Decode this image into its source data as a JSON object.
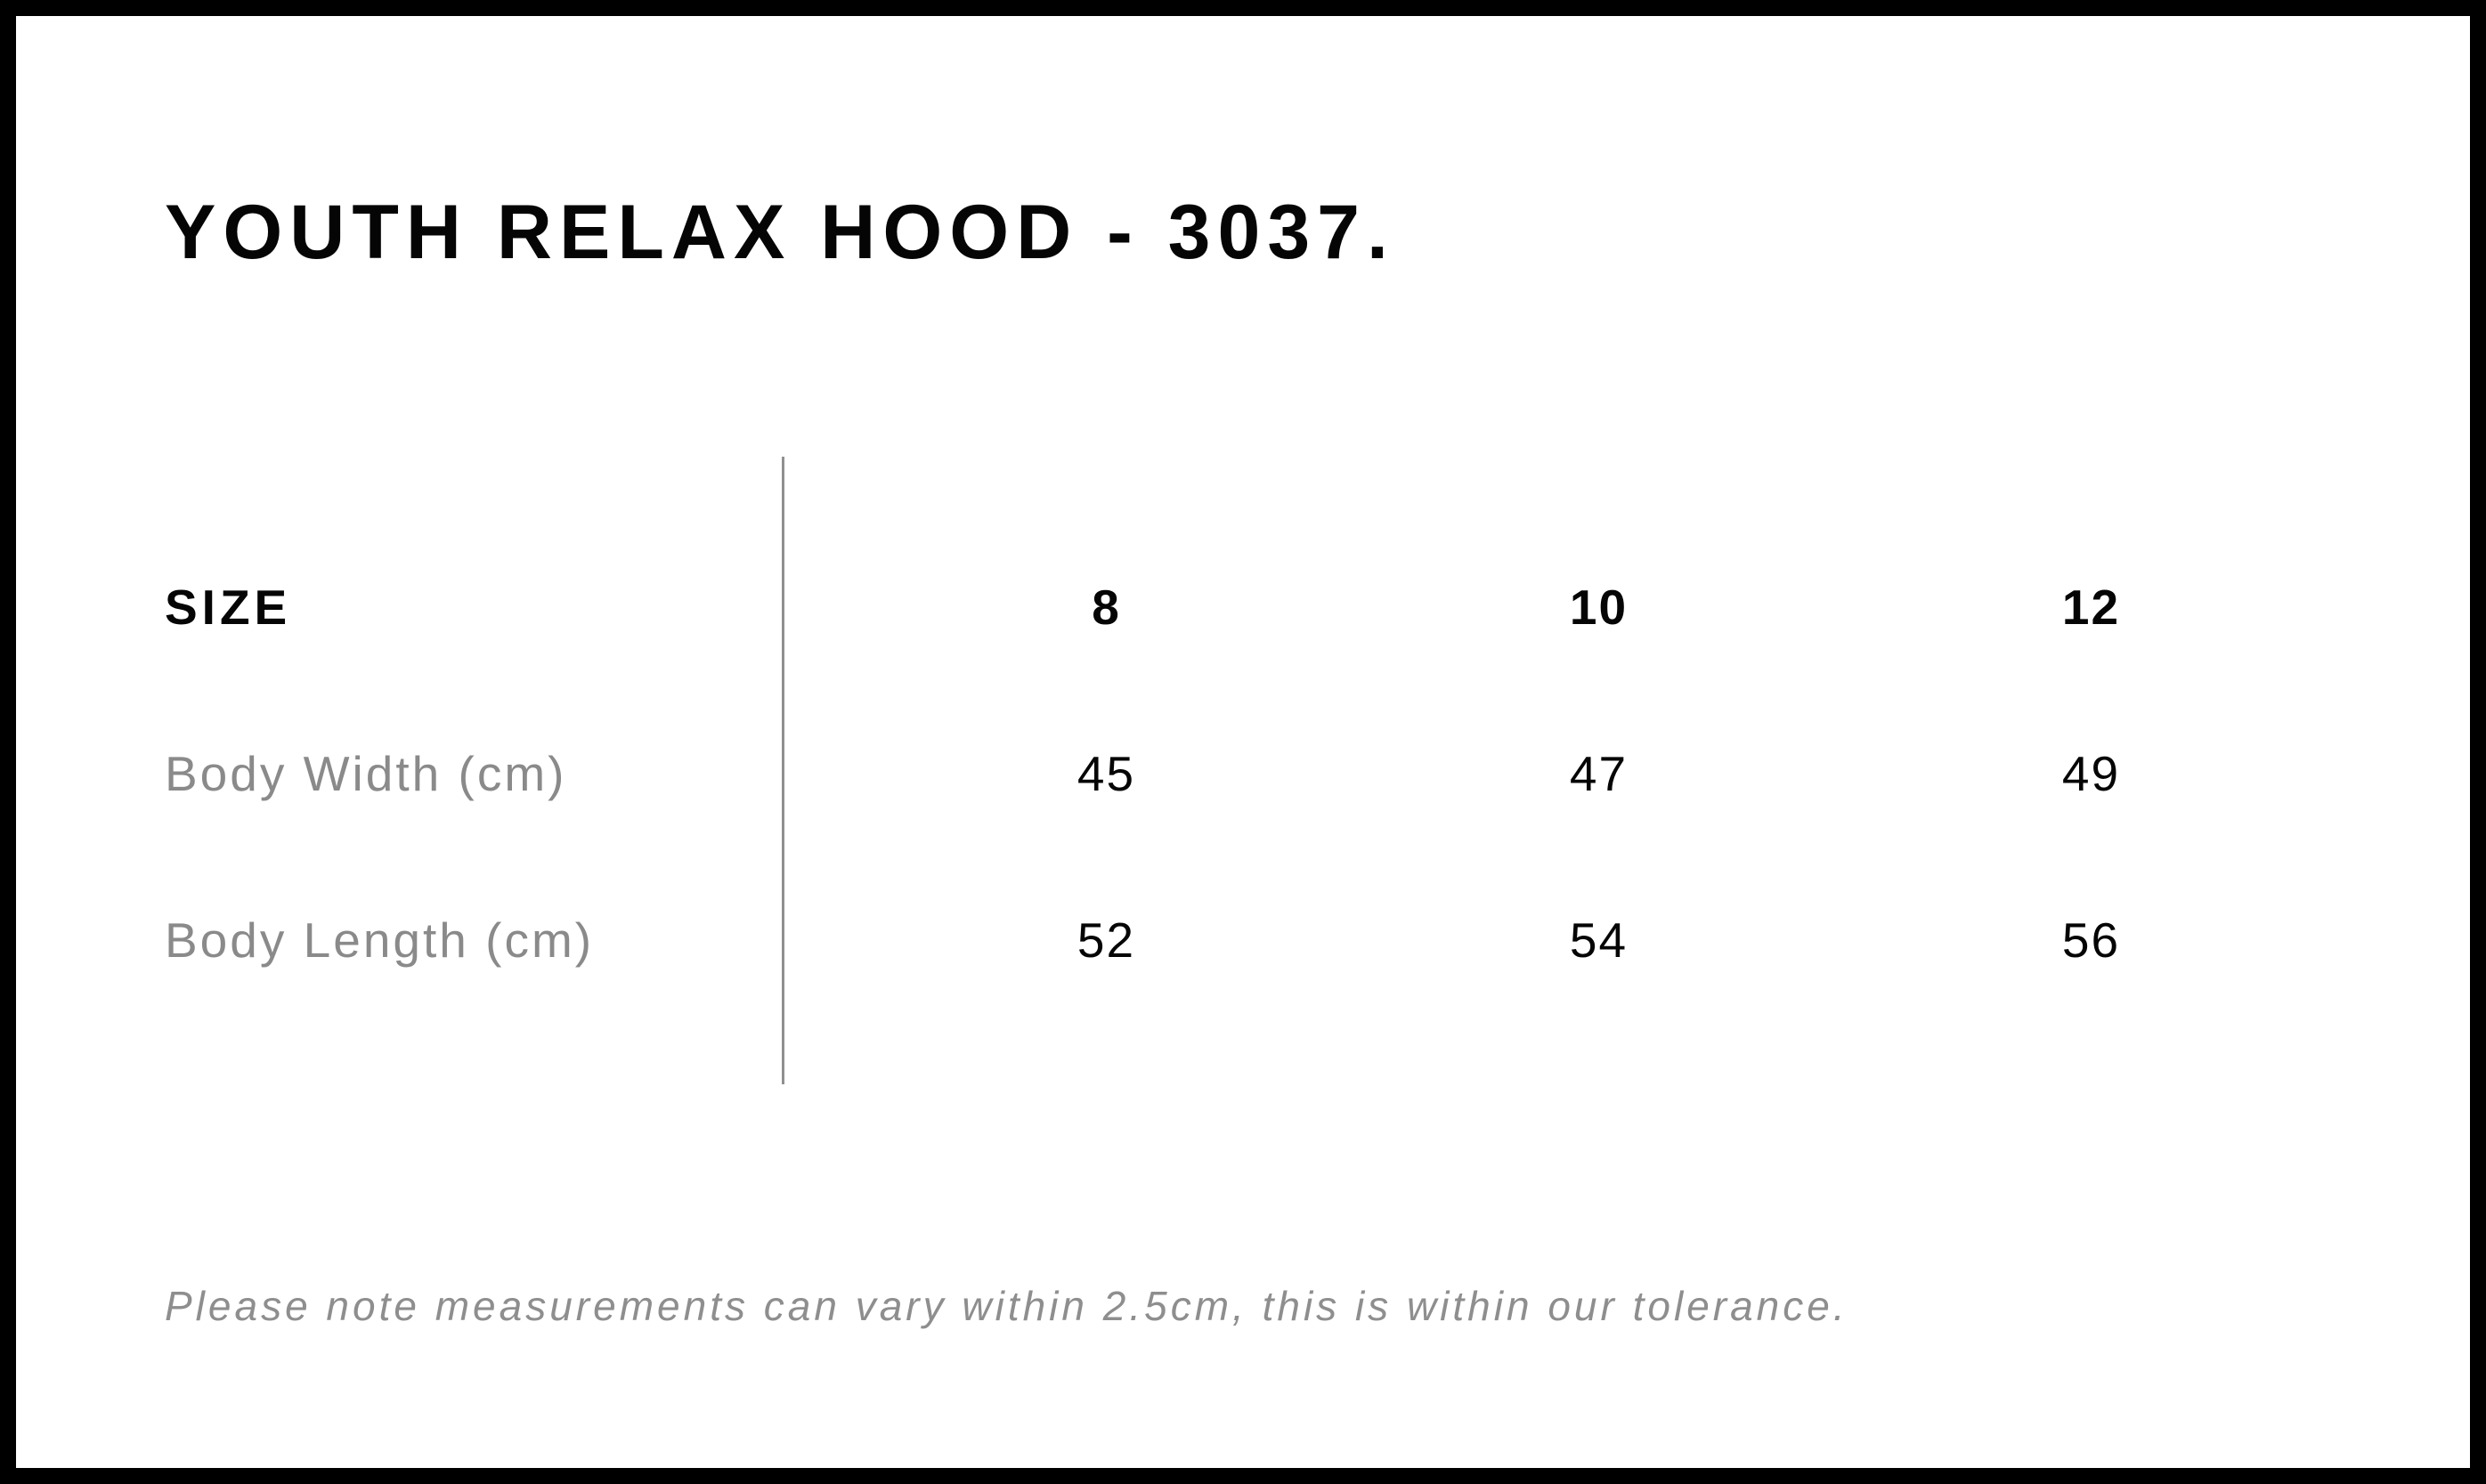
{
  "page": {
    "title": "YOUTH RELAX HOOD - 3037.",
    "note": "Please note measurements can vary within 2.5cm, this is within our tolerance."
  },
  "table": {
    "size_label": "SIZE",
    "sizes": [
      "8",
      "10",
      "12"
    ],
    "rows": [
      {
        "label": "Body Width (cm)",
        "values": [
          "45",
          "47",
          "49"
        ]
      },
      {
        "label": "Body Length (cm)",
        "values": [
          "52",
          "54",
          "56"
        ]
      }
    ]
  },
  "chart_data": {
    "type": "table",
    "title": "YOUTH RELAX HOOD - 3037.",
    "columns": [
      "SIZE",
      "8",
      "10",
      "12"
    ],
    "rows": [
      [
        "Body Width (cm)",
        45,
        47,
        49
      ],
      [
        "Body Length (cm)",
        52,
        54,
        56
      ]
    ],
    "footnote": "Please note measurements can vary within 2.5cm, this is within our tolerance."
  },
  "colors": {
    "background": "#ffffff",
    "border": "#000000",
    "text": "#050505",
    "muted_gray": "#8a8a8a",
    "note_gray": "#8e8e8e",
    "divider_gray": "#909090"
  }
}
